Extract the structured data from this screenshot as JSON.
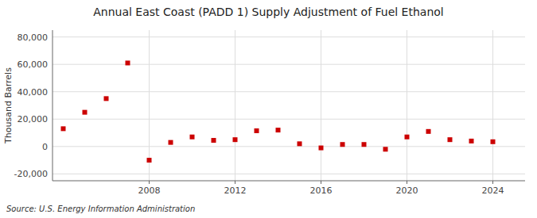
{
  "chart_data": {
    "type": "scatter",
    "title": "Annual East Coast (PADD 1) Supply Adjustment of Fuel Ethanol",
    "ylabel": "Thousand Barrels",
    "source": "Source: U.S. Energy Information Administration",
    "x": [
      2004,
      2005,
      2006,
      2007,
      2008,
      2009,
      2010,
      2011,
      2012,
      2013,
      2014,
      2015,
      2016,
      2017,
      2018,
      2019,
      2020,
      2021,
      2022,
      2023,
      2024
    ],
    "values": [
      13000,
      25000,
      35000,
      61000,
      -10000,
      3000,
      7000,
      4500,
      5000,
      11500,
      12000,
      2000,
      -1000,
      1500,
      1500,
      -2000,
      7000,
      11000,
      5000,
      4000,
      3500
    ],
    "color": "#cc0000",
    "marker": "square",
    "xlim": [
      2003.5,
      2025.5
    ],
    "xticks": [
      2008,
      2012,
      2016,
      2020,
      2024
    ],
    "ylim": [
      -25000,
      85000
    ],
    "yticks": [
      {
        "value": -20000,
        "label": "-20,000"
      },
      0,
      {
        "value": 20000,
        "label": "20,000"
      },
      {
        "value": 40000,
        "label": "40,000"
      },
      {
        "value": 60000,
        "label": "60,000"
      },
      {
        "value": 80000,
        "label": "80,000"
      }
    ],
    "grid": true
  }
}
